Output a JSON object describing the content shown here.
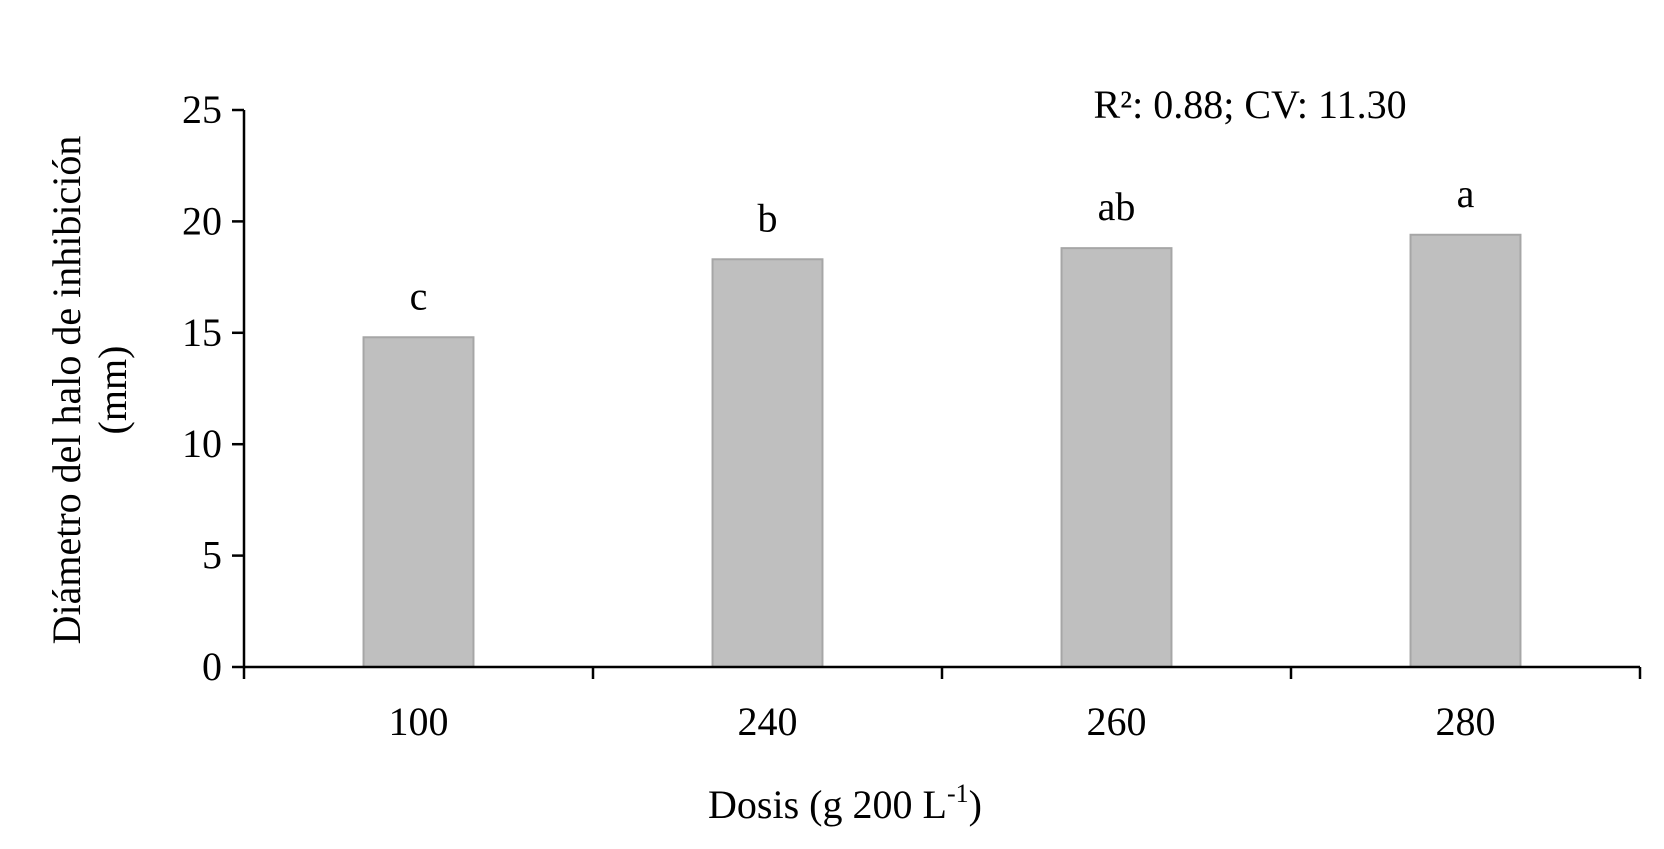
{
  "chart_data": {
    "type": "bar",
    "categories": [
      "100",
      "240",
      "260",
      "280"
    ],
    "values": [
      14.8,
      18.3,
      18.8,
      19.4
    ],
    "significance_letters": [
      "c",
      "b",
      "ab",
      "a"
    ],
    "annotation": "R²: 0.88; CV: 11.30",
    "xlabel": "Dosis (g 200 L",
    "xlabel_superscript": "-1",
    "xlabel_suffix": ")",
    "ylabel_line1": "Diámetro del halo de inhibición",
    "ylabel_line2": "(mm)",
    "ylim": [
      0,
      25
    ],
    "yticks": [
      0,
      5,
      10,
      15,
      20,
      25
    ],
    "grid": false,
    "legend": "none",
    "colors": {
      "bar_fill": "#bfbfbf",
      "bar_stroke": "#a6a6a6",
      "axis": "#000000"
    }
  }
}
